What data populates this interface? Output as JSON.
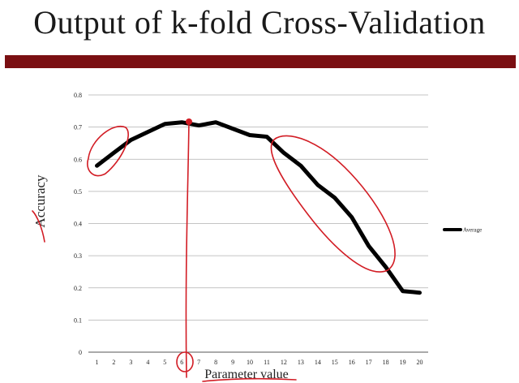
{
  "slide": {
    "title": "Output of k-fold Cross-Validation"
  },
  "chart_data": {
    "type": "line",
    "title": "",
    "xlabel": "Parameter value",
    "ylabel": "Accuracy",
    "x": [
      1,
      2,
      3,
      4,
      5,
      6,
      7,
      8,
      9,
      10,
      11,
      12,
      13,
      14,
      15,
      16,
      17,
      18,
      19,
      20
    ],
    "series": [
      {
        "name": "Average",
        "values": [
          0.58,
          0.62,
          0.66,
          0.685,
          0.71,
          0.715,
          0.705,
          0.715,
          0.695,
          0.675,
          0.67,
          0.62,
          0.58,
          0.52,
          0.48,
          0.42,
          0.33,
          0.265,
          0.19,
          0.185
        ]
      }
    ],
    "xlim": [
      1,
      20
    ],
    "ylim": [
      0,
      0.8
    ],
    "yticks": [
      "0",
      "0.1",
      "0.2",
      "0.3",
      "0.4",
      "0.5",
      "0.6",
      "0.7",
      "0.8"
    ],
    "xticks": [
      "1",
      "2",
      "3",
      "4",
      "5",
      "6",
      "7",
      "8",
      "9",
      "10",
      "11",
      "12",
      "13",
      "14",
      "15",
      "16",
      "17",
      "18",
      "19",
      "20"
    ],
    "grid": true,
    "legend": "right",
    "colors": {
      "line": "#000000",
      "grid": "#b0b0b0",
      "annotation": "#d21c24",
      "title_bar": "#7a0f12"
    }
  }
}
